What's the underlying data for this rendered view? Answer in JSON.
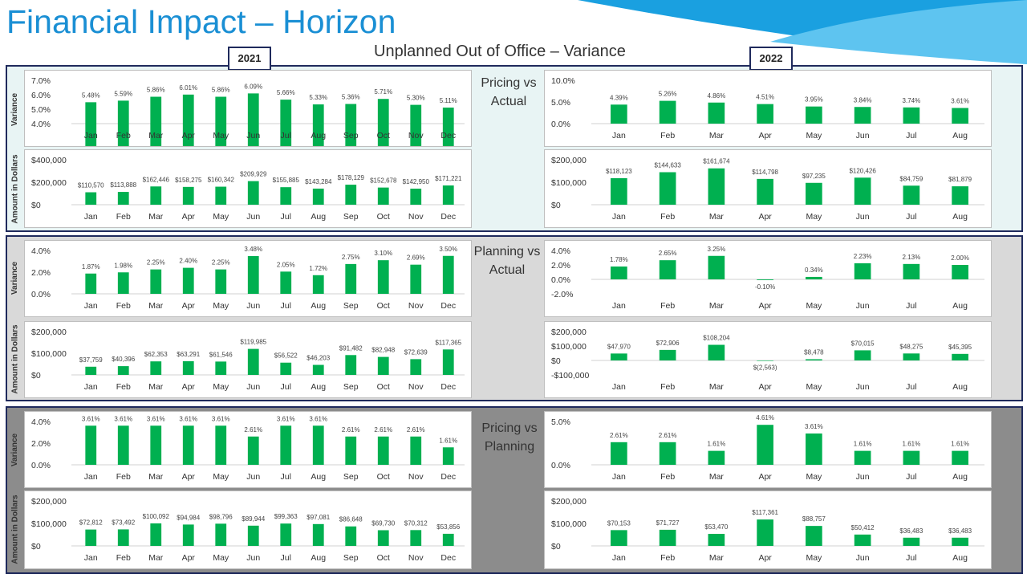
{
  "page": {
    "title": "Financial Impact – Horizon",
    "subtitle": "Unplanned Out of Office – Variance",
    "year_left": "2021",
    "year_right": "2022",
    "row_label_variance": "Variance",
    "row_label_amount": "Amount in Dollars",
    "colors": {
      "bar": "#00b050",
      "title": "#1a8fd4",
      "section_border": "#1f2a5c"
    }
  },
  "sections": [
    {
      "label_line1": "Pricing vs",
      "label_line2": "Actual",
      "background": "#e8f4f4"
    },
    {
      "label_line1": "Planning vs",
      "label_line2": "Actual",
      "background": "#d9d9d9"
    },
    {
      "label_line1": "Pricing vs",
      "label_line2": "Planning",
      "background": "#8c8c8c"
    }
  ],
  "chart_data": [
    {
      "type": "bar",
      "section": 0,
      "year": "2021",
      "metric": "variance",
      "categories": [
        "Jan",
        "Feb",
        "Mar",
        "Apr",
        "May",
        "Jun",
        "Jul",
        "Aug",
        "Sep",
        "Oct",
        "Nov",
        "Dec"
      ],
      "values": [
        5.48,
        5.59,
        5.86,
        6.01,
        5.86,
        6.09,
        5.66,
        5.33,
        5.36,
        5.71,
        5.3,
        5.11
      ],
      "labels": [
        "5.48%",
        "5.59%",
        "5.86%",
        "6.01%",
        "5.86%",
        "6.09%",
        "5.66%",
        "5.33%",
        "5.36%",
        "5.71%",
        "5.30%",
        "5.11%"
      ],
      "ylim": [
        4,
        7
      ],
      "ticks": [
        4,
        5,
        6,
        7
      ],
      "tick_labels": [
        "4.0%",
        "5.0%",
        "6.0%",
        "7.0%"
      ]
    },
    {
      "type": "bar",
      "section": 0,
      "year": "2021",
      "metric": "amount",
      "categories": [
        "Jan",
        "Feb",
        "Mar",
        "Apr",
        "May",
        "Jun",
        "Jul",
        "Aug",
        "Sep",
        "Oct",
        "Nov",
        "Dec"
      ],
      "values": [
        110570,
        113888,
        162446,
        158275,
        160342,
        209929,
        155885,
        143284,
        178129,
        152678,
        142950,
        171221
      ],
      "labels": [
        "$110,570",
        "$113,888",
        "$162,446",
        "$158,275",
        "$160,342",
        "$209,929",
        "$155,885",
        "$143,284",
        "$178,129",
        "$152,678",
        "$142,950",
        "$171,221"
      ],
      "ylim": [
        0,
        400000
      ],
      "ticks": [
        0,
        200000,
        400000
      ],
      "tick_labels": [
        "$0",
        "$200,000",
        "$400,000"
      ]
    },
    {
      "type": "bar",
      "section": 0,
      "year": "2022",
      "metric": "variance",
      "categories": [
        "Jan",
        "Feb",
        "Mar",
        "Apr",
        "May",
        "Jun",
        "Jul",
        "Aug"
      ],
      "values": [
        4.39,
        5.26,
        4.86,
        4.51,
        3.95,
        3.84,
        3.74,
        3.61
      ],
      "labels": [
        "4.39%",
        "5.26%",
        "4.86%",
        "4.51%",
        "3.95%",
        "3.84%",
        "3.74%",
        "3.61%"
      ],
      "ylim": [
        0,
        10
      ],
      "ticks": [
        0,
        5,
        10
      ],
      "tick_labels": [
        "0.0%",
        "5.0%",
        "10.0%"
      ]
    },
    {
      "type": "bar",
      "section": 0,
      "year": "2022",
      "metric": "amount",
      "categories": [
        "Jan",
        "Feb",
        "Mar",
        "Apr",
        "May",
        "Jun",
        "Jul",
        "Aug"
      ],
      "values": [
        118123,
        144633,
        161674,
        114798,
        97235,
        120426,
        84759,
        81879
      ],
      "labels": [
        "$118,123",
        "$144,633",
        "$161,674",
        "$114,798",
        "$97,235",
        "$120,426",
        "$84,759",
        "$81,879"
      ],
      "ylim": [
        0,
        200000
      ],
      "ticks": [
        0,
        100000,
        200000
      ],
      "tick_labels": [
        "$0",
        "$100,000",
        "$200,000"
      ]
    },
    {
      "type": "bar",
      "section": 1,
      "year": "2021",
      "metric": "variance",
      "categories": [
        "Jan",
        "Feb",
        "Mar",
        "Apr",
        "May",
        "Jun",
        "Jul",
        "Aug",
        "Sep",
        "Oct",
        "Nov",
        "Dec"
      ],
      "values": [
        1.87,
        1.98,
        2.25,
        2.4,
        2.25,
        3.48,
        2.05,
        1.72,
        2.75,
        3.1,
        2.69,
        3.5
      ],
      "labels": [
        "1.87%",
        "1.98%",
        "2.25%",
        "2.40%",
        "2.25%",
        "3.48%",
        "2.05%",
        "1.72%",
        "2.75%",
        "3.10%",
        "2.69%",
        "3.50%"
      ],
      "ylim": [
        0,
        4
      ],
      "ticks": [
        0,
        2,
        4
      ],
      "tick_labels": [
        "0.0%",
        "2.0%",
        "4.0%"
      ]
    },
    {
      "type": "bar",
      "section": 1,
      "year": "2021",
      "metric": "amount",
      "categories": [
        "Jan",
        "Feb",
        "Mar",
        "Apr",
        "May",
        "Jun",
        "Jul",
        "Aug",
        "Sep",
        "Oct",
        "Nov",
        "Dec"
      ],
      "values": [
        37759,
        40396,
        62353,
        63291,
        61546,
        119985,
        56522,
        46203,
        91482,
        82948,
        72639,
        117365
      ],
      "labels": [
        "$37,759",
        "$40,396",
        "$62,353",
        "$63,291",
        "$61,546",
        "$119,985",
        "$56,522",
        "$46,203",
        "$91,482",
        "$82,948",
        "$72,639",
        "$117,365"
      ],
      "ylim": [
        0,
        200000
      ],
      "ticks": [
        0,
        100000,
        200000
      ],
      "tick_labels": [
        "$0",
        "$100,000",
        "$200,000"
      ]
    },
    {
      "type": "bar",
      "section": 1,
      "year": "2022",
      "metric": "variance",
      "categories": [
        "Jan",
        "Feb",
        "Mar",
        "Apr",
        "May",
        "Jun",
        "Jul",
        "Aug"
      ],
      "values": [
        1.78,
        2.65,
        3.25,
        -0.1,
        0.34,
        2.23,
        2.13,
        2.0
      ],
      "labels": [
        "1.78%",
        "2.65%",
        "3.25%",
        "-0.10%",
        "0.34%",
        "2.23%",
        "2.13%",
        "2.00%"
      ],
      "ylim": [
        -2,
        4
      ],
      "ticks": [
        -2,
        0,
        2,
        4
      ],
      "tick_labels": [
        "-2.0%",
        "0.0%",
        "2.0%",
        "4.0%"
      ]
    },
    {
      "type": "bar",
      "section": 1,
      "year": "2022",
      "metric": "amount",
      "categories": [
        "Jan",
        "Feb",
        "Mar",
        "Apr",
        "May",
        "Jun",
        "Jul",
        "Aug"
      ],
      "values": [
        47970,
        72906,
        108204,
        -2563,
        8478,
        70015,
        48275,
        45395
      ],
      "labels": [
        "$47,970",
        "$72,906",
        "$108,204",
        "$(2,563)",
        "$8,478",
        "$70,015",
        "$48,275",
        "$45,395"
      ],
      "ylim": [
        -100000,
        200000
      ],
      "ticks": [
        -100000,
        0,
        100000,
        200000
      ],
      "tick_labels": [
        "-$100,000",
        "$0",
        "$100,000",
        "$200,000"
      ]
    },
    {
      "type": "bar",
      "section": 2,
      "year": "2021",
      "metric": "variance",
      "categories": [
        "Jan",
        "Feb",
        "Mar",
        "Apr",
        "May",
        "Jun",
        "Jul",
        "Aug",
        "Sep",
        "Oct",
        "Nov",
        "Dec"
      ],
      "values": [
        3.61,
        3.61,
        3.61,
        3.61,
        3.61,
        2.61,
        3.61,
        3.61,
        2.61,
        2.61,
        2.61,
        1.61
      ],
      "labels": [
        "3.61%",
        "3.61%",
        "3.61%",
        "3.61%",
        "3.61%",
        "2.61%",
        "3.61%",
        "3.61%",
        "2.61%",
        "2.61%",
        "2.61%",
        "1.61%"
      ],
      "ylim": [
        0,
        4
      ],
      "ticks": [
        0,
        2,
        4
      ],
      "tick_labels": [
        "0.0%",
        "2.0%",
        "4.0%"
      ]
    },
    {
      "type": "bar",
      "section": 2,
      "year": "2021",
      "metric": "amount",
      "categories": [
        "Jan",
        "Feb",
        "Mar",
        "Apr",
        "May",
        "Jun",
        "Jul",
        "Aug",
        "Sep",
        "Oct",
        "Nov",
        "Dec"
      ],
      "values": [
        72812,
        73492,
        100092,
        94984,
        98796,
        89944,
        99363,
        97081,
        86648,
        69730,
        70312,
        53856
      ],
      "labels": [
        "$72,812",
        "$73,492",
        "$100,092",
        "$94,984",
        "$98,796",
        "$89,944",
        "$99,363",
        "$97,081",
        "$86,648",
        "$69,730",
        "$70,312",
        "$53,856"
      ],
      "ylim": [
        0,
        200000
      ],
      "ticks": [
        0,
        100000,
        200000
      ],
      "tick_labels": [
        "$0",
        "$100,000",
        "$200,000"
      ]
    },
    {
      "type": "bar",
      "section": 2,
      "year": "2022",
      "metric": "variance",
      "categories": [
        "Jan",
        "Feb",
        "Mar",
        "Apr",
        "May",
        "Jun",
        "Jul",
        "Aug"
      ],
      "values": [
        2.61,
        2.61,
        1.61,
        4.61,
        3.61,
        1.61,
        1.61,
        1.61
      ],
      "labels": [
        "2.61%",
        "2.61%",
        "1.61%",
        "4.61%",
        "3.61%",
        "1.61%",
        "1.61%",
        "1.61%"
      ],
      "ylim": [
        0,
        5
      ],
      "ticks": [
        0,
        5
      ],
      "tick_labels": [
        "0.0%",
        "5.0%"
      ]
    },
    {
      "type": "bar",
      "section": 2,
      "year": "2022",
      "metric": "amount",
      "categories": [
        "Jan",
        "Feb",
        "Mar",
        "Apr",
        "May",
        "Jun",
        "Jul",
        "Aug"
      ],
      "values": [
        70153,
        71727,
        53470,
        117361,
        88757,
        50412,
        36483,
        36483
      ],
      "labels": [
        "$70,153",
        "$71,727",
        "$53,470",
        "$117,361",
        "$88,757",
        "$50,412",
        "$36,483",
        "$36,483"
      ],
      "ylim": [
        0,
        200000
      ],
      "ticks": [
        0,
        100000,
        200000
      ],
      "tick_labels": [
        "$0",
        "$100,000",
        "$200,000"
      ]
    }
  ]
}
